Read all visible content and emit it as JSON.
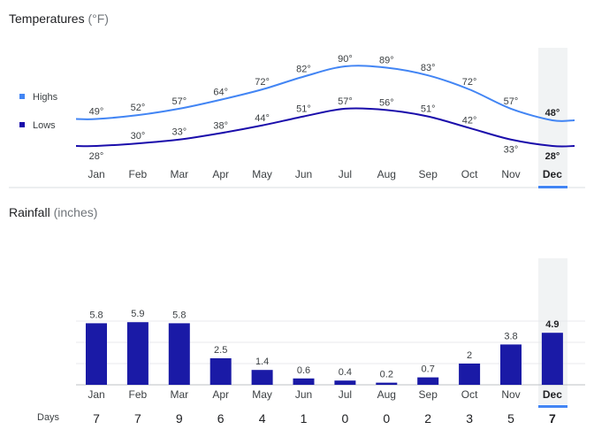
{
  "temperatures": {
    "title": "Temperatures",
    "unit": "(°F)",
    "legend": {
      "highs": "Highs",
      "lows": "Lows"
    }
  },
  "rainfall": {
    "title": "Rainfall",
    "unit": "(inches)",
    "days_label": "Days"
  },
  "selected_month": "Dec",
  "colors": {
    "highs": "#4285f4",
    "lows": "#1a0dab",
    "bars": "#1a1aa6",
    "highlight": "#f1f3f4",
    "selected_underline": "#4285f4"
  },
  "chart_data": [
    {
      "type": "line",
      "title": "Temperatures",
      "categories": [
        "Jan",
        "Feb",
        "Mar",
        "Apr",
        "May",
        "Jun",
        "Jul",
        "Aug",
        "Sep",
        "Oct",
        "Nov",
        "Dec"
      ],
      "series": [
        {
          "name": "Highs",
          "values": [
            49,
            52,
            57,
            64,
            72,
            82,
            90,
            89,
            83,
            72,
            57,
            48
          ],
          "labels": [
            "49°",
            "52°",
            "57°",
            "64°",
            "72°",
            "82°",
            "90°",
            "89°",
            "83°",
            "72°",
            "57°",
            "48°"
          ]
        },
        {
          "name": "Lows",
          "values": [
            28,
            30,
            33,
            38,
            44,
            51,
            57,
            56,
            51,
            42,
            33,
            28
          ],
          "labels": [
            "28°",
            "30°",
            "33°",
            "38°",
            "44°",
            "51°",
            "57°",
            "56°",
            "51°",
            "42°",
            "33°",
            "28°"
          ]
        }
      ],
      "legend_position": "left"
    },
    {
      "type": "bar",
      "title": "Rainfall",
      "categories": [
        "Jan",
        "Feb",
        "Mar",
        "Apr",
        "May",
        "Jun",
        "Jul",
        "Aug",
        "Sep",
        "Oct",
        "Nov",
        "Dec"
      ],
      "values": [
        5.8,
        5.9,
        5.8,
        2.5,
        1.4,
        0.6,
        0.4,
        0.2,
        0.7,
        2,
        3.8,
        4.9
      ],
      "labels": [
        "5.8",
        "5.9",
        "5.8",
        "2.5",
        "1.4",
        "0.6",
        "0.4",
        "0.2",
        "0.7",
        "2",
        "3.8",
        "4.9"
      ],
      "days": [
        "7",
        "7",
        "9",
        "6",
        "4",
        "1",
        "0",
        "0",
        "2",
        "3",
        "5",
        "7"
      ],
      "grid": true
    }
  ]
}
